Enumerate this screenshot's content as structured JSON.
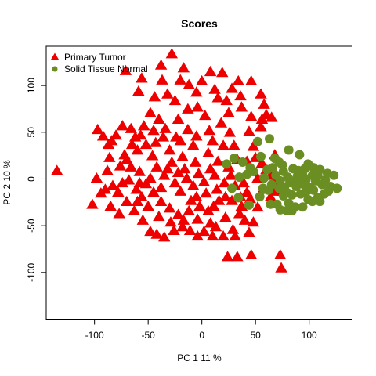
{
  "chart_data": {
    "type": "scatter",
    "title": "Scores",
    "xlabel": "PC 1 11 %",
    "ylabel": "PC 2 10 %",
    "xlim": [
      -145,
      140
    ],
    "ylim": [
      -150,
      142
    ],
    "x_ticks": [
      -100,
      -50,
      0,
      50,
      100
    ],
    "x_tick_labels": [
      "-100",
      "-50",
      "0",
      "50",
      "100"
    ],
    "y_ticks": [
      -100,
      -50,
      0,
      50,
      100
    ],
    "y_tick_labels": [
      "-100",
      "-50",
      "0",
      "50",
      "100"
    ],
    "grid": false,
    "legend_position": "top-left",
    "series": [
      {
        "name": "Primary Tumor",
        "marker": "triangle",
        "color": "#EE0000",
        "points": [
          [
            -135,
            8
          ],
          [
            -102,
            -28
          ],
          [
            -97,
            52
          ],
          [
            -92,
            45
          ],
          [
            -87,
            36
          ],
          [
            -84,
            40
          ],
          [
            -74,
            56
          ],
          [
            -66,
            53
          ],
          [
            -57,
            46
          ],
          [
            -45,
            51
          ],
          [
            -34,
            53
          ],
          [
            -40,
            63
          ],
          [
            -22,
            63
          ],
          [
            -13,
            52
          ],
          [
            -24,
            44
          ],
          [
            -5,
            45
          ],
          [
            7,
            51
          ],
          [
            18,
            59
          ],
          [
            26,
            49
          ],
          [
            44,
            50
          ],
          [
            56,
            63
          ],
          [
            60,
            68
          ],
          [
            -71,
            115
          ],
          [
            -56,
            107
          ],
          [
            -37,
            105
          ],
          [
            -17,
            118
          ],
          [
            -38,
            121
          ],
          [
            -28,
            133
          ],
          [
            -12,
            100
          ],
          [
            -5,
            92
          ],
          [
            8,
            114
          ],
          [
            12,
            95
          ],
          [
            19,
            113
          ],
          [
            23,
            83
          ],
          [
            34,
            104
          ],
          [
            36,
            88
          ],
          [
            46,
            104
          ],
          [
            55,
            90
          ],
          [
            58,
            79
          ],
          [
            65,
            65
          ],
          [
            -98,
            0
          ],
          [
            -90,
            -12
          ],
          [
            -88,
            8
          ],
          [
            -78,
            -15
          ],
          [
            -76,
            13
          ],
          [
            -70,
            20
          ],
          [
            -63,
            -35
          ],
          [
            -60,
            -25
          ],
          [
            -55,
            -45
          ],
          [
            -48,
            -57
          ],
          [
            -42,
            -60
          ],
          [
            -35,
            -63
          ],
          [
            -26,
            -56
          ],
          [
            -18,
            -52
          ],
          [
            -11,
            -56
          ],
          [
            2,
            -57
          ],
          [
            8,
            -48
          ],
          [
            13,
            -52
          ],
          [
            22,
            -42
          ],
          [
            29,
            -55
          ],
          [
            31,
            -62
          ],
          [
            35,
            -38
          ],
          [
            40,
            -45
          ],
          [
            48,
            -47
          ],
          [
            52,
            -31
          ],
          [
            57,
            -12
          ],
          [
            64,
            -20
          ],
          [
            68,
            -14
          ],
          [
            75,
            -14
          ],
          [
            74,
            -8
          ],
          [
            64,
            3
          ],
          [
            60,
            9
          ],
          [
            56,
            16
          ],
          [
            50,
            22
          ],
          [
            45,
            7
          ],
          [
            42,
            18
          ],
          [
            39,
            -5
          ],
          [
            42,
            -15
          ],
          [
            36,
            -20
          ],
          [
            31,
            -8
          ],
          [
            22,
            -20
          ],
          [
            16,
            -24
          ],
          [
            11,
            -30
          ],
          [
            6,
            -35
          ],
          [
            -2,
            -30
          ],
          [
            -5,
            -20
          ],
          [
            -12,
            -35
          ],
          [
            -22,
            -39
          ],
          [
            -30,
            -32
          ],
          [
            -38,
            -25
          ],
          [
            -45,
            -15
          ],
          [
            -52,
            -6
          ],
          [
            -58,
            7
          ],
          [
            -66,
            12
          ],
          [
            -72,
            25
          ],
          [
            -60,
            30
          ],
          [
            -52,
            36
          ],
          [
            -43,
            38
          ],
          [
            -30,
            30
          ],
          [
            -18,
            23
          ],
          [
            -8,
            35
          ],
          [
            6,
            27
          ],
          [
            15,
            18
          ],
          [
            25,
            12
          ],
          [
            33,
            20
          ],
          [
            30,
            35
          ],
          [
            20,
            35
          ],
          [
            8,
            10
          ],
          [
            -3,
            5
          ],
          [
            -14,
            0
          ],
          [
            -25,
            -5
          ],
          [
            -35,
            3
          ],
          [
            -42,
            12
          ],
          [
            -28,
            17
          ],
          [
            -16,
            10
          ],
          [
            -6,
            17
          ],
          [
            12,
            3
          ],
          [
            21,
            -5
          ],
          [
            28,
            -24
          ],
          [
            -4,
            -44
          ],
          [
            -17,
            -45
          ],
          [
            -29,
            -47
          ],
          [
            -40,
            -41
          ],
          [
            -50,
            -30
          ],
          [
            -61,
            -12
          ],
          [
            -68,
            -2
          ],
          [
            -83,
            -8
          ],
          [
            -94,
            -16
          ],
          [
            -86,
            22
          ],
          [
            -80,
            46
          ],
          [
            -62,
            44
          ],
          [
            -46,
            24
          ],
          [
            -32,
            10
          ],
          [
            -20,
            -14
          ],
          [
            -8,
            -8
          ],
          [
            4,
            -16
          ],
          [
            14,
            -12
          ],
          [
            27,
            3
          ],
          [
            37,
            -30
          ],
          [
            44,
            -58
          ],
          [
            -56,
            -20
          ],
          [
            -48,
            0
          ],
          [
            -38,
            -10
          ],
          [
            -22,
            6
          ],
          [
            -10,
            -24
          ],
          [
            2,
            -4
          ],
          [
            10,
            40
          ],
          [
            -20,
            40
          ],
          [
            -36,
            44
          ],
          [
            -70,
            -25
          ],
          [
            -65,
            36
          ],
          [
            48,
            34
          ],
          [
            3,
            67
          ],
          [
            -4,
            76
          ],
          [
            -25,
            83
          ],
          [
            -13,
            74
          ],
          [
            25,
            70
          ],
          [
            37,
            76
          ],
          [
            46,
            66
          ],
          [
            55,
            55
          ],
          [
            67,
            -5
          ],
          [
            52,
            0
          ],
          [
            -54,
            56
          ],
          [
            -48,
            70
          ],
          [
            -32,
            90
          ],
          [
            -20,
            105
          ],
          [
            0,
            104
          ],
          [
            15,
            86
          ],
          [
            28,
            96
          ],
          [
            -59,
            93
          ],
          [
            -44,
            87
          ],
          [
            20,
            -62
          ],
          [
            45,
            -22
          ],
          [
            -77,
            -38
          ],
          [
            -85,
            -30
          ],
          [
            24,
            -84
          ],
          [
            33,
            -84
          ],
          [
            46,
            -82
          ],
          [
            -74,
            -5
          ],
          [
            -58,
            -5
          ],
          [
            -4,
            -62
          ],
          [
            10,
            -62
          ],
          [
            68,
            25
          ],
          [
            73,
            -82
          ],
          [
            74,
            -96
          ]
        ]
      },
      {
        "name": "Solid Tissue Normal",
        "marker": "circle",
        "color": "#6B8E23",
        "points": [
          [
            52,
            40
          ],
          [
            63,
            43
          ],
          [
            72,
            18
          ],
          [
            81,
            31
          ],
          [
            91,
            26
          ],
          [
            99,
            16
          ],
          [
            103,
            4
          ],
          [
            110,
            10
          ],
          [
            117,
            6
          ],
          [
            123,
            4
          ],
          [
            126,
            -10
          ],
          [
            114,
            -16
          ],
          [
            108,
            -20
          ],
          [
            97,
            -14
          ],
          [
            86,
            -2
          ],
          [
            76,
            8
          ],
          [
            69,
            4
          ],
          [
            65,
            -6
          ],
          [
            72,
            -10
          ],
          [
            76,
            -18
          ],
          [
            81,
            -26
          ],
          [
            84,
            -34
          ],
          [
            87,
            -30
          ],
          [
            92,
            -16
          ],
          [
            101,
            -9
          ],
          [
            106,
            -2
          ],
          [
            112,
            -6
          ],
          [
            118,
            -13
          ],
          [
            110,
            -24
          ],
          [
            99,
            -12
          ],
          [
            88,
            -8
          ],
          [
            80,
            -15
          ],
          [
            73,
            -2
          ],
          [
            94,
            4
          ],
          [
            85,
            11
          ],
          [
            90,
            9
          ],
          [
            104,
            -12
          ],
          [
            97,
            -1
          ],
          [
            82,
            -4
          ],
          [
            77,
            -9
          ],
          [
            66,
            12
          ],
          [
            58,
            1
          ],
          [
            54,
            -19
          ],
          [
            64,
            -27
          ],
          [
            70,
            -27
          ],
          [
            99,
            -22
          ],
          [
            95,
            -6
          ],
          [
            104,
            12
          ],
          [
            96,
            11
          ],
          [
            80,
            2
          ],
          [
            75,
            15
          ],
          [
            61,
            10
          ],
          [
            23,
            16
          ],
          [
            30,
            22
          ],
          [
            38,
            18
          ],
          [
            45,
            12
          ],
          [
            42,
            5
          ],
          [
            35,
            2
          ],
          [
            28,
            -10
          ],
          [
            34,
            -20
          ],
          [
            44,
            -28
          ],
          [
            48,
            8
          ],
          [
            55,
            24
          ],
          [
            68,
            22
          ],
          [
            57,
            -10
          ],
          [
            62,
            -12
          ],
          [
            73,
            -33
          ],
          [
            79,
            -34
          ],
          [
            84,
            -17
          ],
          [
            89,
            3
          ],
          [
            92,
            -4
          ],
          [
            108,
            4
          ],
          [
            115,
            -1
          ],
          [
            120,
            -8
          ],
          [
            103,
            -24
          ],
          [
            94,
            -30
          ]
        ]
      }
    ]
  }
}
